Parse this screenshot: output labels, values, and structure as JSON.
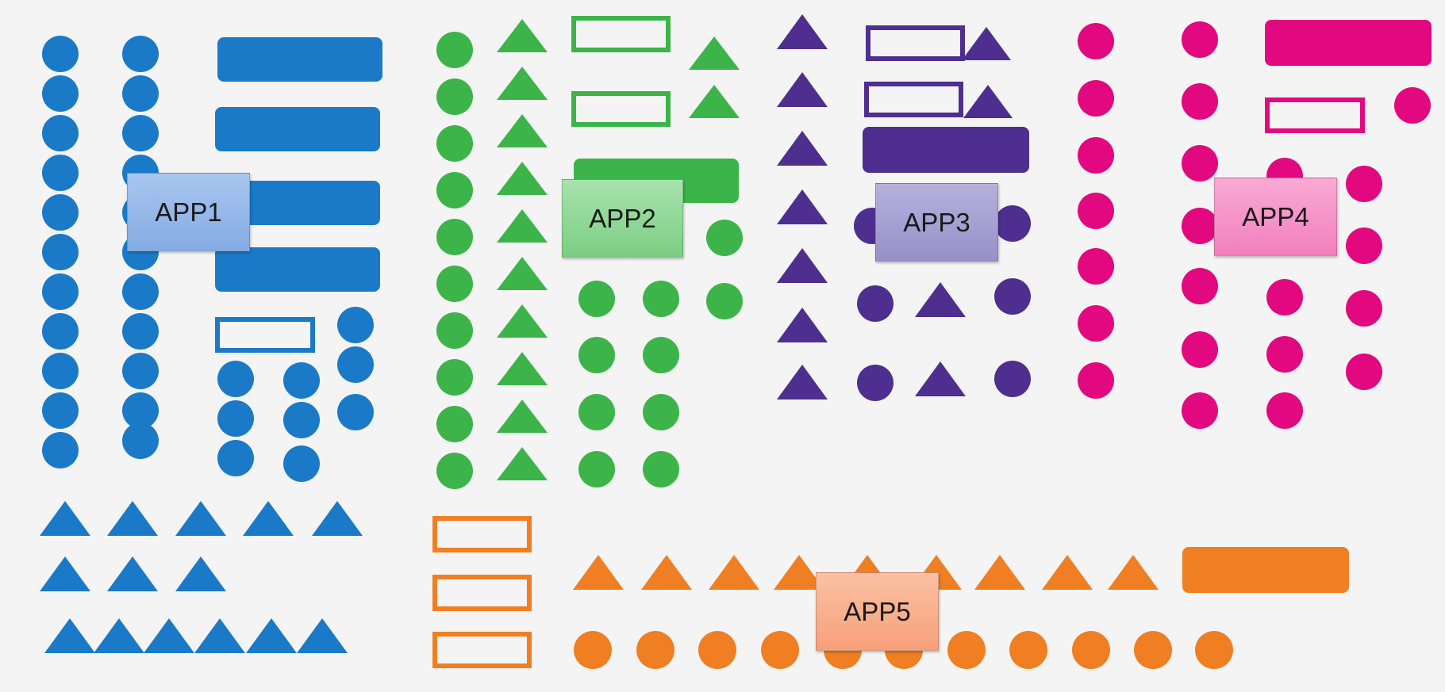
{
  "colors": {
    "app1": "#1a7ac8",
    "app2": "#3cb449",
    "app3": "#4e2e8e",
    "app4": "#e2087f",
    "app5": "#ef7f22"
  },
  "apps": [
    {
      "key": "app1",
      "label": "APP1"
    },
    {
      "key": "app2",
      "label": "APP2"
    },
    {
      "key": "app3",
      "label": "APP3"
    },
    {
      "key": "app4",
      "label": "APP4"
    },
    {
      "key": "app5",
      "label": "APP5"
    }
  ]
}
